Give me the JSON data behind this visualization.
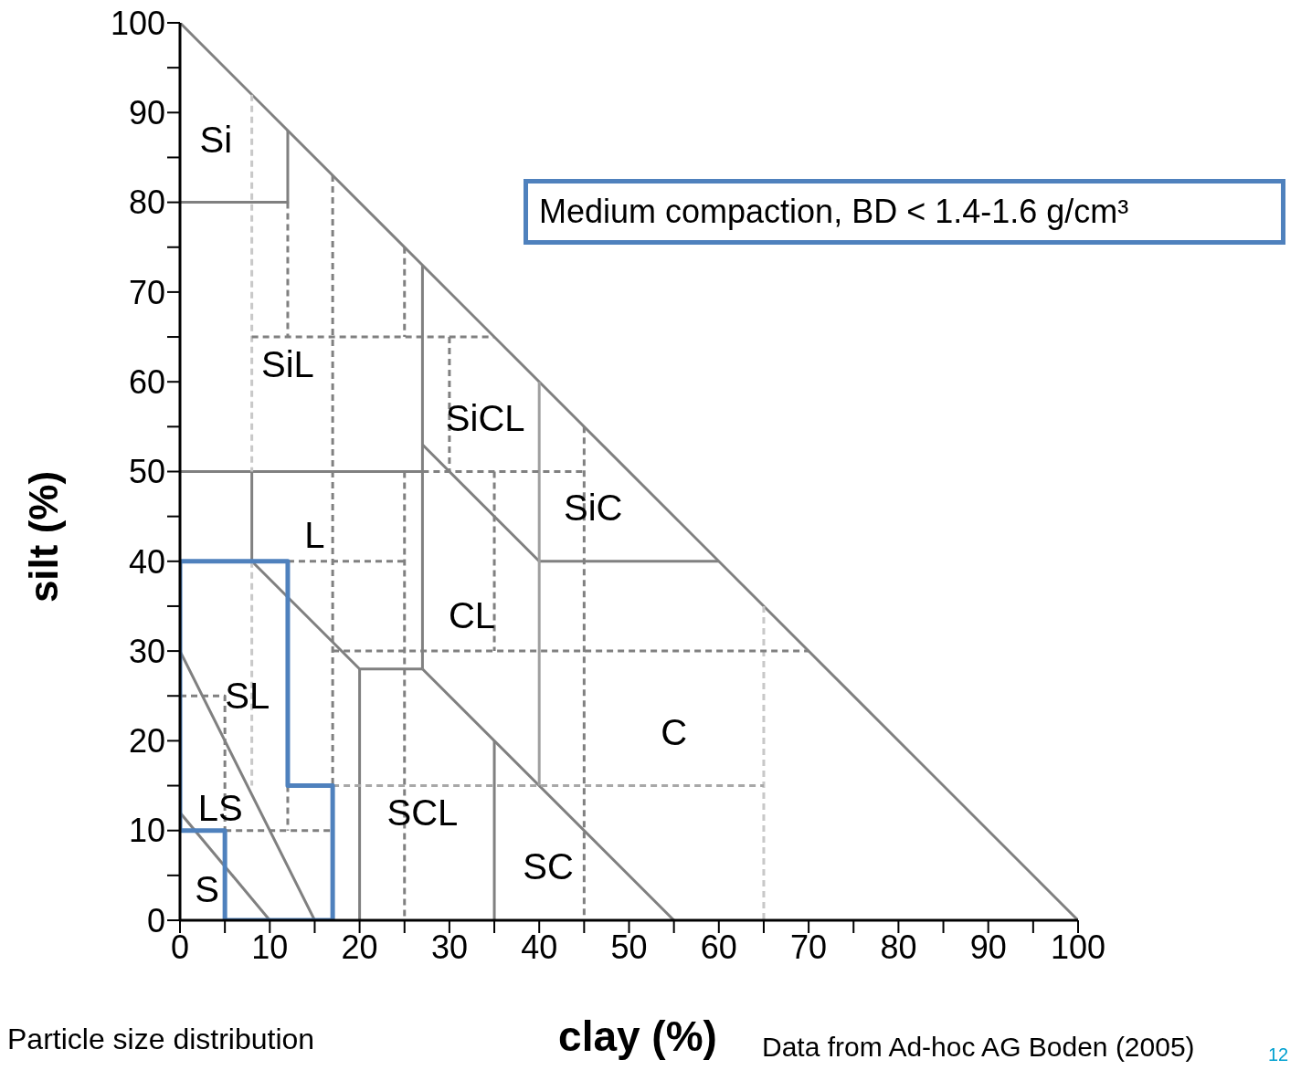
{
  "chart_data": {
    "type": "line",
    "xlabel": "clay (%)",
    "ylabel": "silt (%)",
    "xlim": [
      0,
      100
    ],
    "ylim": [
      0,
      100
    ],
    "xticks": [
      0,
      {
        "value": 5,
        "label": null
      },
      10,
      {
        "value": 15,
        "label": null
      },
      20,
      {
        "value": 25,
        "label": null
      },
      30,
      {
        "value": 35,
        "label": null
      },
      40,
      {
        "value": 45,
        "label": null
      },
      50,
      {
        "value": 55,
        "label": null
      },
      60,
      {
        "value": 65,
        "label": null
      },
      70,
      {
        "value": 75,
        "label": null
      },
      80,
      {
        "value": 85,
        "label": null
      },
      90,
      {
        "value": 95,
        "label": null
      },
      100
    ],
    "yticks": [
      0,
      {
        "value": 5,
        "label": null
      },
      10,
      {
        "value": 15,
        "label": null
      },
      20,
      {
        "value": 25,
        "label": null
      },
      30,
      {
        "value": 35,
        "label": null
      },
      40,
      {
        "value": 45,
        "label": null
      },
      50,
      {
        "value": 55,
        "label": null
      },
      60,
      {
        "value": 65,
        "label": null
      },
      70,
      {
        "value": 75,
        "label": null
      },
      80,
      {
        "value": 85,
        "label": null
      },
      90,
      {
        "value": 95,
        "label": null
      },
      100
    ],
    "grid": false,
    "marker": "none",
    "series": [
      {
        "color": "#808080",
        "line_style": "solid",
        "x": [
          0,
          100
        ],
        "values": [
          100,
          0
        ]
      },
      {
        "color": "#808080",
        "line_style": "solid",
        "x": [
          0,
          12,
          12
        ],
        "values": [
          80,
          80,
          88
        ]
      },
      {
        "color": "#808080",
        "line_style": "solid",
        "x": [
          0,
          27
        ],
        "values": [
          50,
          50
        ]
      },
      {
        "color": "#808080",
        "line_style": "solid",
        "x": [
          27,
          27
        ],
        "values": [
          73,
          28
        ]
      },
      {
        "color": "#808080",
        "line_style": "solid",
        "x": [
          8,
          8
        ],
        "values": [
          50,
          40
        ]
      },
      {
        "color": "#808080",
        "line_style": "solid",
        "x": [
          8,
          20,
          27
        ],
        "values": [
          40,
          28,
          28
        ]
      },
      {
        "color": "#808080",
        "line_style": "solid",
        "x": [
          20,
          20
        ],
        "values": [
          28,
          0
        ]
      },
      {
        "color": "#808080",
        "line_style": "solid",
        "x": [
          27,
          55
        ],
        "values": [
          28,
          0
        ]
      },
      {
        "color": "#808080",
        "line_style": "solid",
        "x": [
          27,
          40,
          60
        ],
        "values": [
          53,
          40,
          40
        ]
      },
      {
        "color": "#a0a0a0",
        "line_style": "solid",
        "x": [
          40,
          40
        ],
        "values": [
          60,
          15
        ]
      },
      {
        "color": "#808080",
        "line_style": "solid",
        "x": [
          35,
          35
        ],
        "values": [
          20,
          0
        ]
      },
      {
        "color": "#808080",
        "line_style": "solid",
        "x": [
          0,
          15
        ],
        "values": [
          30,
          0
        ]
      },
      {
        "color": "#808080",
        "line_style": "solid",
        "x": [
          0,
          10
        ],
        "values": [
          12,
          0
        ]
      },
      {
        "color": "#c8c8c8",
        "line_style": "dashed",
        "x": [
          8,
          8
        ],
        "values": [
          92,
          50
        ]
      },
      {
        "color": "#c8c8c8",
        "line_style": "dashed",
        "x": [
          8,
          8
        ],
        "values": [
          40,
          15
        ]
      },
      {
        "color": "#808080",
        "line_style": "dashed",
        "x": [
          12,
          12
        ],
        "values": [
          80,
          65
        ]
      },
      {
        "color": "#808080",
        "line_style": "dashed",
        "x": [
          17,
          17
        ],
        "values": [
          83,
          15
        ]
      },
      {
        "color": "#808080",
        "line_style": "dashed",
        "x": [
          25,
          25
        ],
        "values": [
          75,
          65
        ]
      },
      {
        "color": "#808080",
        "line_style": "dashed",
        "x": [
          25,
          25
        ],
        "values": [
          50,
          0
        ]
      },
      {
        "color": "#808080",
        "line_style": "dashed",
        "x": [
          30,
          30
        ],
        "values": [
          65,
          50
        ]
      },
      {
        "color": "#808080",
        "line_style": "dashed",
        "x": [
          35,
          35
        ],
        "values": [
          50,
          30
        ]
      },
      {
        "color": "#808080",
        "line_style": "dashed",
        "x": [
          45,
          45
        ],
        "values": [
          55,
          0
        ]
      },
      {
        "color": "#c8c8c8",
        "line_style": "dashed",
        "x": [
          65,
          65
        ],
        "values": [
          35,
          0
        ]
      },
      {
        "color": "#808080",
        "line_style": "dashed",
        "x": [
          8,
          35
        ],
        "values": [
          65,
          65
        ]
      },
      {
        "color": "#808080",
        "line_style": "dashed",
        "x": [
          27,
          45
        ],
        "values": [
          50,
          50
        ]
      },
      {
        "color": "#808080",
        "line_style": "dashed",
        "x": [
          12,
          25
        ],
        "values": [
          40,
          40
        ]
      },
      {
        "color": "#808080",
        "line_style": "dashed",
        "x": [
          17,
          70
        ],
        "values": [
          30,
          30
        ]
      },
      {
        "color": "#a8a8a8",
        "line_style": "dashed",
        "x": [
          17,
          65
        ],
        "values": [
          15,
          15
        ]
      },
      {
        "color": "#808080",
        "line_style": "dashed",
        "x": [
          0,
          5,
          5
        ],
        "values": [
          25,
          25,
          10
        ]
      },
      {
        "color": "#808080",
        "line_style": "dashed",
        "x": [
          5,
          17
        ],
        "values": [
          10,
          10
        ]
      },
      {
        "color": "#808080",
        "line_style": "dashed",
        "x": [
          12,
          12
        ],
        "values": [
          15,
          10
        ]
      },
      {
        "color": "#4f81bd",
        "line_style": "solid",
        "x": [
          0,
          12,
          12,
          17,
          17
        ],
        "values": [
          40,
          40,
          15,
          15,
          0
        ]
      },
      {
        "color": "#4f81bd",
        "line_style": "solid",
        "x": [
          5,
          17
        ],
        "values": [
          0,
          0
        ]
      },
      {
        "color": "#4f81bd",
        "line_style": "solid",
        "x": [
          0,
          5,
          5
        ],
        "values": [
          10,
          10,
          0
        ]
      },
      {
        "color": "#4f81bd",
        "line_style": "solid",
        "x": [
          0,
          0
        ],
        "values": [
          10,
          40
        ]
      }
    ],
    "annotations": [
      "Medium compaction, BD < 1.4-1.6  g/cm³",
      "Particle size distribution",
      "Data from Ad-hoc AG Boden (2005)",
      "12",
      "Si",
      "SiL",
      "SiCL",
      "SiC",
      "L",
      "CL",
      "SL",
      "LS",
      "S",
      "SCL",
      "SC",
      "C"
    ]
  }
}
